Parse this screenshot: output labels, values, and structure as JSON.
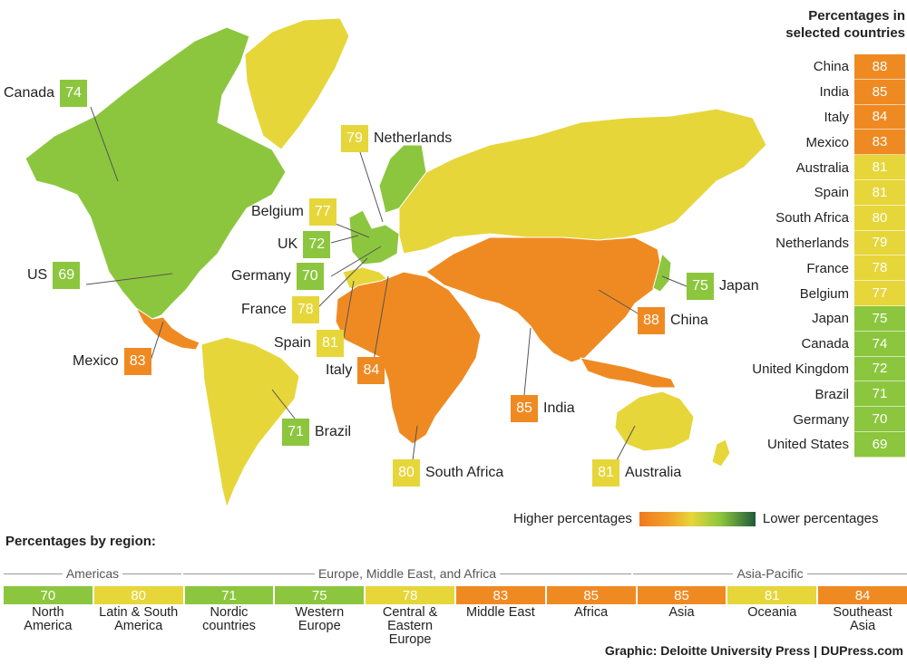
{
  "colors": {
    "green": "#8cc63e",
    "yellow": "#e6d63a",
    "orange": "#ef8a22"
  },
  "table": {
    "title": "Percentages in selected countries",
    "rows": [
      {
        "name": "China",
        "value": "88",
        "color": "#ef8a22"
      },
      {
        "name": "India",
        "value": "85",
        "color": "#ef8a22"
      },
      {
        "name": "Italy",
        "value": "84",
        "color": "#ef8a22"
      },
      {
        "name": "Mexico",
        "value": "83",
        "color": "#ef8a22"
      },
      {
        "name": "Australia",
        "value": "81",
        "color": "#e6d63a"
      },
      {
        "name": "Spain",
        "value": "81",
        "color": "#e6d63a"
      },
      {
        "name": "South Africa",
        "value": "80",
        "color": "#e6d63a"
      },
      {
        "name": "Netherlands",
        "value": "79",
        "color": "#e6d63a"
      },
      {
        "name": "France",
        "value": "78",
        "color": "#e6d63a"
      },
      {
        "name": "Belgium",
        "value": "77",
        "color": "#e6d63a"
      },
      {
        "name": "Japan",
        "value": "75",
        "color": "#8cc63e"
      },
      {
        "name": "Canada",
        "value": "74",
        "color": "#8cc63e"
      },
      {
        "name": "United Kingdom",
        "value": "72",
        "color": "#8cc63e"
      },
      {
        "name": "Brazil",
        "value": "71",
        "color": "#8cc63e"
      },
      {
        "name": "Germany",
        "value": "70",
        "color": "#8cc63e"
      },
      {
        "name": "United States",
        "value": "69",
        "color": "#8cc63e"
      }
    ]
  },
  "callouts": [
    {
      "name": "Canada",
      "value": "74",
      "color": "#8cc63e"
    },
    {
      "name": "Netherlands",
      "value": "79",
      "color": "#e6d63a"
    },
    {
      "name": "Belgium",
      "value": "77",
      "color": "#e6d63a"
    },
    {
      "name": "UK",
      "value": "72",
      "color": "#8cc63e"
    },
    {
      "name": "US",
      "value": "69",
      "color": "#8cc63e"
    },
    {
      "name": "Germany",
      "value": "70",
      "color": "#8cc63e"
    },
    {
      "name": "France",
      "value": "78",
      "color": "#e6d63a"
    },
    {
      "name": "Spain",
      "value": "81",
      "color": "#e6d63a"
    },
    {
      "name": "Mexico",
      "value": "83",
      "color": "#ef8a22"
    },
    {
      "name": "Italy",
      "value": "84",
      "color": "#ef8a22"
    },
    {
      "name": "Brazil",
      "value": "71",
      "color": "#8cc63e"
    },
    {
      "name": "South Africa",
      "value": "80",
      "color": "#e6d63a"
    },
    {
      "name": "India",
      "value": "85",
      "color": "#ef8a22"
    },
    {
      "name": "China",
      "value": "88",
      "color": "#ef8a22"
    },
    {
      "name": "Japan",
      "value": "75",
      "color": "#8cc63e"
    },
    {
      "name": "Australia",
      "value": "81",
      "color": "#e6d63a"
    }
  ],
  "legend": {
    "high": "Higher percentages",
    "low": "Lower percentages"
  },
  "regions": {
    "title": "Percentages by region:",
    "groups": [
      "Americas",
      "Europe, Middle East, and Africa",
      "Asia-Pacific"
    ],
    "items": [
      {
        "name": "North\nAmerica",
        "value": "70",
        "color": "#8cc63e"
      },
      {
        "name": "Latin & South\nAmerica",
        "value": "80",
        "color": "#e6d63a"
      },
      {
        "name": "Nordic\ncountries",
        "value": "71",
        "color": "#8cc63e"
      },
      {
        "name": "Western\nEurope",
        "value": "75",
        "color": "#8cc63e"
      },
      {
        "name": "Central &\nEastern Europe",
        "value": "78",
        "color": "#e6d63a"
      },
      {
        "name": "Middle East",
        "value": "83",
        "color": "#ef8a22"
      },
      {
        "name": "Africa",
        "value": "85",
        "color": "#ef8a22"
      },
      {
        "name": "Asia",
        "value": "85",
        "color": "#ef8a22"
      },
      {
        "name": "Oceania",
        "value": "81",
        "color": "#e6d63a"
      },
      {
        "name": "Southeast\nAsia",
        "value": "84",
        "color": "#ef8a22"
      }
    ]
  },
  "credit": "Graphic: Deloitte University Press  |  DUPress.com"
}
